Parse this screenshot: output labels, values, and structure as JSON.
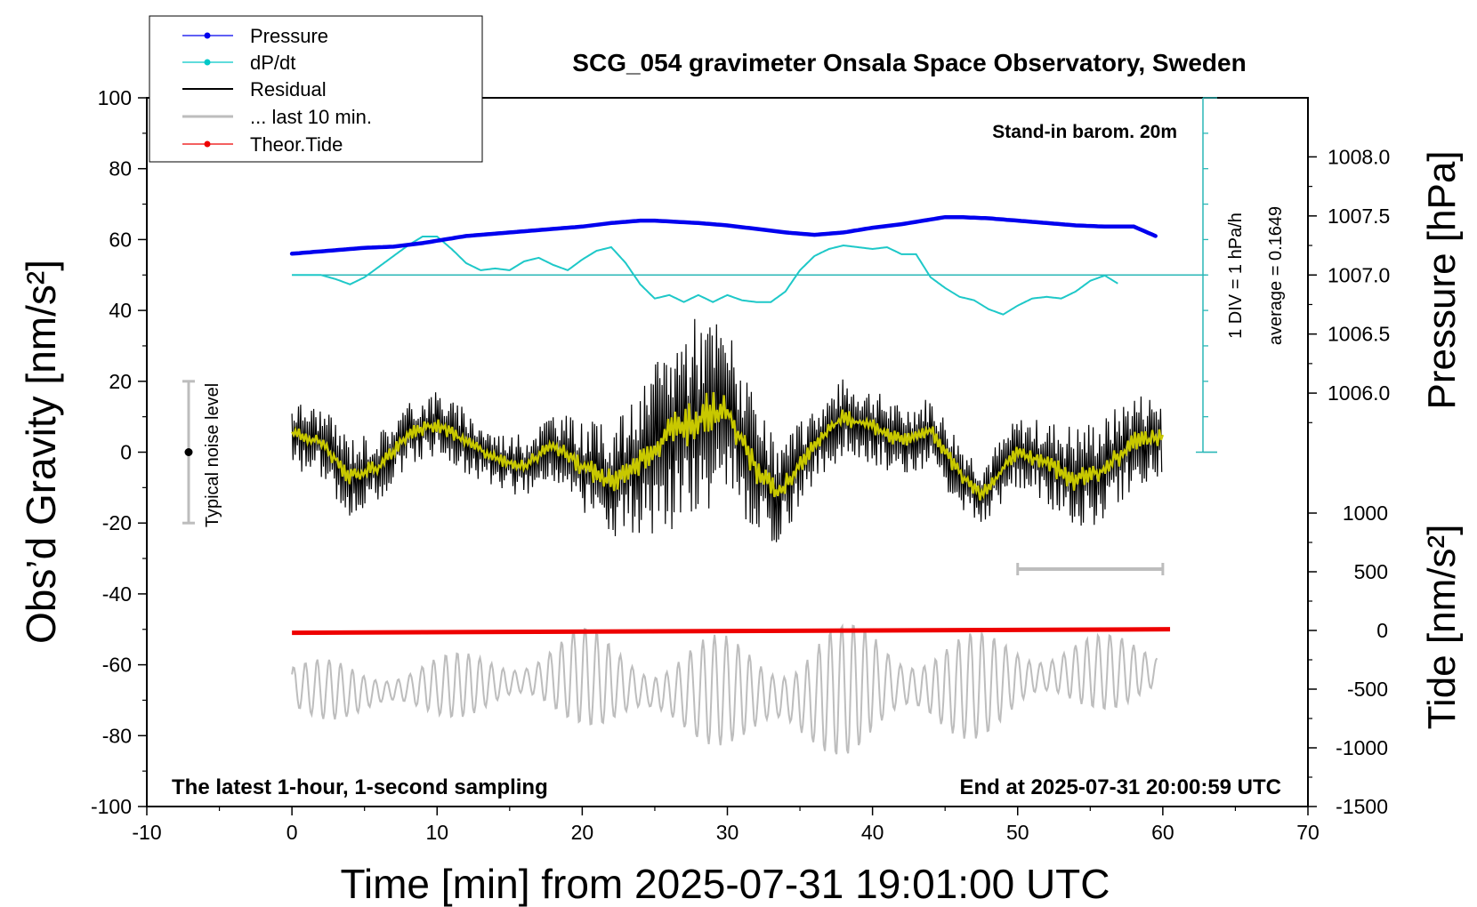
{
  "chart_data": {
    "type": "line",
    "title": "SCG_054 gravimeter Onsala Space Observatory, Sweden",
    "xlabel": "Time [min] from 2025-07-31 19:01:00 UTC",
    "ylabel_left": "Obs’d Gravity [nm/s²]",
    "ylabel_right_pressure": "Pressure [hPa]",
    "ylabel_right_tide": "Tide [nm/s²]",
    "xlim": [
      -10,
      70
    ],
    "ylim_left": [
      -100,
      100
    ],
    "x_ticks": [
      -10,
      0,
      10,
      20,
      30,
      40,
      50,
      60,
      70
    ],
    "y_ticks_left": [
      -100,
      -80,
      -60,
      -40,
      -20,
      0,
      20,
      40,
      60,
      80,
      100
    ],
    "pressure_ticks": [
      "1008.0",
      "1007.5",
      "1007.0",
      "1006.5",
      "1006.0"
    ],
    "pressure_range_hpa": [
      1005.5,
      1008.5
    ],
    "tide_ticks": [
      "1000",
      "500",
      "0",
      "-500",
      "-1000",
      "-1500"
    ],
    "tide_range": [
      -1500,
      1500
    ],
    "annotations": {
      "station_note": "Stand-in barom. 20m",
      "bottom_left": "The latest 1-hour, 1-second sampling",
      "bottom_right": "End at 2025-07-31 20:00:59 UTC",
      "dpdt_scale": "1 DIV = 1 hPa/h",
      "dpdt_average": "average = 0.1649",
      "noise_label": "Typical noise level"
    },
    "noise_level_range": [
      -20,
      20
    ],
    "last10_bar_range_min": [
      50,
      60
    ],
    "legend": {
      "position": "top-left",
      "entries": [
        "Pressure",
        "dP/dt",
        "Residual",
        "... last 10 min.",
        "Theor.Tide"
      ]
    },
    "series": [
      {
        "name": "Pressure",
        "unit": "hPa",
        "color": "#0000ee",
        "x": [
          0,
          3,
          5,
          7,
          9,
          10,
          12,
          14,
          16,
          18,
          20,
          22,
          23,
          24,
          25,
          28,
          30,
          32,
          34,
          36,
          38,
          40,
          42,
          44,
          45,
          46,
          48,
          50,
          52,
          54,
          56,
          58,
          59.5
        ],
        "values": [
          1007.18,
          1007.21,
          1007.23,
          1007.24,
          1007.27,
          1007.29,
          1007.33,
          1007.35,
          1007.37,
          1007.39,
          1007.41,
          1007.44,
          1007.45,
          1007.46,
          1007.46,
          1007.44,
          1007.42,
          1007.39,
          1007.36,
          1007.34,
          1007.36,
          1007.4,
          1007.43,
          1007.47,
          1007.49,
          1007.49,
          1007.48,
          1007.46,
          1007.44,
          1007.42,
          1007.41,
          1007.41,
          1007.33
        ]
      },
      {
        "name": "dP/dt",
        "unit": "hPa/h",
        "color": "#00c8c8",
        "baseline_hpa_per_h": 0.1649,
        "x": [
          0,
          2,
          3,
          4,
          5,
          6,
          7,
          8,
          9,
          10,
          11,
          12,
          13,
          14,
          15,
          16,
          17,
          18,
          19,
          20,
          21,
          22,
          23,
          24,
          25,
          26,
          27,
          28,
          29,
          30,
          31,
          32,
          33,
          34,
          35,
          36,
          37,
          38,
          39,
          40,
          41,
          42,
          43,
          44,
          45,
          46,
          47,
          48,
          49,
          50,
          51,
          52,
          53,
          54,
          55,
          56,
          57
        ],
        "values": [
          0.1649,
          0.1649,
          0.05,
          -0.1,
          0.1,
          0.4,
          0.7,
          1.0,
          1.25,
          1.25,
          0.9,
          0.5,
          0.3,
          0.35,
          0.3,
          0.55,
          0.65,
          0.45,
          0.3,
          0.6,
          0.85,
          0.95,
          0.5,
          -0.1,
          -0.5,
          -0.4,
          -0.6,
          -0.4,
          -0.6,
          -0.4,
          -0.55,
          -0.6,
          -0.6,
          -0.3,
          0.3,
          0.7,
          0.9,
          1.0,
          0.95,
          0.9,
          0.95,
          0.75,
          0.75,
          0.1,
          -0.2,
          -0.45,
          -0.55,
          -0.8,
          -0.95,
          -0.7,
          -0.5,
          -0.45,
          -0.5,
          -0.3,
          0.0,
          0.15,
          -0.1
        ]
      },
      {
        "name": "Residual",
        "unit": "nm/s²",
        "color": "#000000",
        "x": [
          0,
          2,
          4,
          6,
          8,
          10,
          12,
          14,
          16,
          18,
          20,
          22,
          24,
          26,
          28,
          30,
          32,
          33.5,
          36,
          38,
          40,
          42,
          44,
          46,
          47.5,
          50,
          52,
          54,
          56,
          58,
          60
        ],
        "values": [
          5,
          3,
          -7,
          -4,
          5,
          8,
          3,
          -2,
          -4,
          2,
          -4,
          -8,
          -3,
          5,
          10,
          12,
          -5,
          -12,
          2,
          10,
          7,
          3,
          6,
          -6,
          -12,
          0,
          -3,
          -8,
          -5,
          3,
          4
        ],
        "envelope_half_width": [
          10,
          10,
          12,
          10,
          9,
          10,
          9,
          8,
          9,
          10,
          13,
          16,
          20,
          28,
          30,
          25,
          18,
          14,
          11,
          11,
          11,
          10,
          10,
          10,
          9,
          10,
          12,
          16,
          15,
          14,
          12
        ]
      },
      {
        "name": "Residual smoothed",
        "color": "#c8c800",
        "x": [
          0,
          2,
          4,
          6,
          8,
          10,
          12,
          14,
          16,
          18,
          20,
          22,
          24,
          26,
          28,
          30,
          32,
          33.5,
          36,
          38,
          40,
          42,
          44,
          46,
          47.5,
          50,
          52,
          54,
          56,
          58,
          60
        ],
        "values": [
          5,
          3,
          -7,
          -4,
          5,
          8,
          3,
          -2,
          -4,
          2,
          -4,
          -8,
          -3,
          5,
          10,
          12,
          -5,
          -12,
          2,
          10,
          7,
          3,
          6,
          -6,
          -12,
          0,
          -3,
          -8,
          -5,
          3,
          4
        ]
      },
      {
        "name": "... last 10 min.",
        "unit": "nm/s²",
        "color": "#c0c0c0",
        "x": [
          0,
          5,
          10,
          15,
          20,
          25,
          30,
          35,
          40,
          45,
          50,
          55,
          60
        ],
        "values": [
          -66,
          -68,
          -66,
          -65,
          -63,
          -68,
          -67,
          -70,
          -65,
          -67,
          -64,
          -62,
          -62
        ],
        "oscillation_amplitude": [
          8,
          9,
          9,
          10,
          14,
          14,
          16,
          20,
          18,
          16,
          14,
          11,
          10
        ]
      },
      {
        "name": "Theor.Tide",
        "unit": "nm/s²",
        "color": "#ee0000",
        "x": [
          0,
          60.5
        ],
        "values": [
          -20,
          10
        ]
      }
    ]
  }
}
